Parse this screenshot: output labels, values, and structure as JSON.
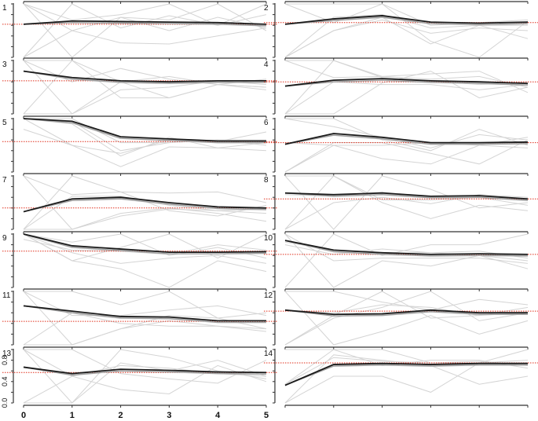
{
  "chart_data": {
    "type": "line",
    "layout": {
      "rows": 7,
      "cols": 2,
      "shared_x": true,
      "grid": false
    },
    "x": [
      0,
      1,
      2,
      3,
      4,
      5
    ],
    "x_tick_labels": [
      "0",
      "1",
      "2",
      "3",
      "4",
      "5"
    ],
    "y_tick_labels": [
      "0.0",
      "0.4",
      "0.8"
    ],
    "ylim": [
      0,
      1
    ],
    "xlim": [
      0,
      5
    ],
    "colors": {
      "mean": "#1a1a1a",
      "smooth": "#a0a0a0",
      "individual": "#d4d4d4",
      "reference": "#e0301e",
      "axis": "#333333"
    },
    "panels": [
      {
        "label": "1",
        "reference": 0.62,
        "mean": [
          0.62,
          0.68,
          0.67,
          0.66,
          0.65,
          0.62
        ],
        "series": [
          [
            1.0,
            0.0,
            0.75,
            0.5,
            0.75,
            0.55
          ],
          [
            0.0,
            1.0,
            0.55,
            0.78,
            0.6,
            0.8
          ],
          [
            0.0,
            0.5,
            0.27,
            0.25,
            0.4,
            0.55
          ],
          [
            1.0,
            0.5,
            0.75,
            0.7,
            1.0,
            0.5
          ],
          [
            1.0,
            0.7,
            0.8,
            1.0,
            0.6,
            1.0
          ]
        ]
      },
      {
        "label": "2",
        "reference": 0.65,
        "mean": [
          0.62,
          0.72,
          0.78,
          0.66,
          0.64,
          0.66
        ],
        "series": [
          [
            0.0,
            0.5,
            0.7,
            0.45,
            0.55,
            0.5
          ],
          [
            1.0,
            1.0,
            1.0,
            0.3,
            0.0,
            0.68
          ],
          [
            0.0,
            0.75,
            0.8,
            0.55,
            0.6,
            0.35
          ],
          [
            1.0,
            0.65,
            1.0,
            0.6,
            0.65,
            0.7
          ],
          [
            0.0,
            0.5,
            0.75,
            0.25,
            0.6,
            0.6
          ]
        ]
      },
      {
        "label": "3",
        "reference": 0.62,
        "mean": [
          0.8,
          0.68,
          0.62,
          0.6,
          0.62,
          0.62
        ],
        "series": [
          [
            1.0,
            0.0,
            0.6,
            0.3,
            0.55,
            0.45
          ],
          [
            0.0,
            1.0,
            0.3,
            0.3,
            0.55,
            0.5
          ],
          [
            1.0,
            0.6,
            0.85,
            0.65,
            0.55,
            0.5
          ],
          [
            0.0,
            0.0,
            0.45,
            0.5,
            0.62,
            0.55
          ],
          [
            1.0,
            1.0,
            0.6,
            0.7,
            0.55,
            0.65
          ]
        ]
      },
      {
        "label": "4",
        "reference": 0.6,
        "mean": [
          0.52,
          0.63,
          0.66,
          0.62,
          0.6,
          0.57
        ],
        "series": [
          [
            0.0,
            0.0,
            0.58,
            0.8,
            0.3,
            0.5
          ],
          [
            1.0,
            1.0,
            0.7,
            0.75,
            0.8,
            0.4
          ],
          [
            0.0,
            0.6,
            0.55,
            0.55,
            0.45,
            0.55
          ],
          [
            1.0,
            0.68,
            0.7,
            0.65,
            0.7,
            0.5
          ],
          [
            0.0,
            1.0,
            0.68,
            0.62,
            0.55,
            0.6
          ]
        ]
      },
      {
        "label": "5",
        "reference": 0.57,
        "mean": [
          1.0,
          0.95,
          0.66,
          0.62,
          0.58,
          0.58
        ],
        "series": [
          [
            1.0,
            0.5,
            0.1,
            0.47,
            0.45,
            0.4
          ],
          [
            1.0,
            0.9,
            0.3,
            0.65,
            0.45,
            0.55
          ],
          [
            0.8,
            0.5,
            0.35,
            0.6,
            0.57,
            0.75
          ],
          [
            1.0,
            0.95,
            0.4,
            0.55,
            0.6,
            0.5
          ],
          [
            1.0,
            1.0,
            0.55,
            0.55,
            0.6,
            0.6
          ]
        ]
      },
      {
        "label": "6",
        "reference": 0.55,
        "mean": [
          0.52,
          0.72,
          0.65,
          0.55,
          0.55,
          0.56
        ],
        "series": [
          [
            0.0,
            0.5,
            0.25,
            0.15,
            0.5,
            0.65
          ],
          [
            1.0,
            1.0,
            0.6,
            0.4,
            0.8,
            0.5
          ],
          [
            0.0,
            0.55,
            0.55,
            0.35,
            0.15,
            0.6
          ],
          [
            1.0,
            0.85,
            0.65,
            0.45,
            0.7,
            0.6
          ],
          [
            0.55,
            0.5,
            0.5,
            0.55,
            0.5,
            0.45
          ]
        ]
      },
      {
        "label": "7",
        "reference": 0.4,
        "mean": [
          0.33,
          0.57,
          0.6,
          0.5,
          0.42,
          0.4
        ],
        "series": [
          [
            1.0,
            0.0,
            0.3,
            0.4,
            0.3,
            0.15
          ],
          [
            0.0,
            1.0,
            0.7,
            0.35,
            0.25,
            0.45
          ],
          [
            1.0,
            0.65,
            0.7,
            0.68,
            0.7,
            0.5
          ],
          [
            0.0,
            0.0,
            0.25,
            0.38,
            0.35,
            0.3
          ],
          [
            0.0,
            0.62,
            0.62,
            0.45,
            0.35,
            0.38
          ]
        ]
      },
      {
        "label": "8",
        "reference": 0.57,
        "mean": [
          0.68,
          0.65,
          0.68,
          0.62,
          0.63,
          0.57
        ],
        "series": [
          [
            0.0,
            1.0,
            0.5,
            0.2,
            0.45,
            0.35
          ],
          [
            1.0,
            0.0,
            1.0,
            0.75,
            0.4,
            0.5
          ],
          [
            0.0,
            0.5,
            0.6,
            0.48,
            0.65,
            0.6
          ],
          [
            1.0,
            1.0,
            0.55,
            0.55,
            0.6,
            0.45
          ],
          [
            0.65,
            0.62,
            0.7,
            0.6,
            0.62,
            0.55
          ]
        ]
      },
      {
        "label": "9",
        "reference": 0.68,
        "mean": [
          1.0,
          0.78,
          0.72,
          0.66,
          0.66,
          0.67
        ],
        "series": [
          [
            1.0,
            0.5,
            0.35,
            0.0,
            0.5,
            0.3
          ],
          [
            1.0,
            0.5,
            0.75,
            1.0,
            0.55,
            1.0
          ],
          [
            1.0,
            0.65,
            0.45,
            0.55,
            0.6,
            0.45
          ],
          [
            1.0,
            0.85,
            1.0,
            0.6,
            0.75,
            0.55
          ],
          [
            0.9,
            0.7,
            0.68,
            0.62,
            0.8,
            0.7
          ]
        ]
      },
      {
        "label": "10",
        "reference": 0.62,
        "mean": [
          0.88,
          0.7,
          0.65,
          0.62,
          0.63,
          0.62
        ],
        "series": [
          [
            1.0,
            0.0,
            0.5,
            0.4,
            0.6,
            0.35
          ],
          [
            0.0,
            1.0,
            0.6,
            0.8,
            0.8,
            1.0
          ],
          [
            1.0,
            0.5,
            0.55,
            0.55,
            0.55,
            0.45
          ],
          [
            0.8,
            0.62,
            0.72,
            0.65,
            0.6,
            0.5
          ],
          [
            0.85,
            0.7,
            0.65,
            0.65,
            0.68,
            0.55
          ]
        ]
      },
      {
        "label": "11",
        "reference": 0.44,
        "mean": [
          0.73,
          0.63,
          0.53,
          0.52,
          0.45,
          0.45
        ],
        "series": [
          [
            0.0,
            0.0,
            0.3,
            0.45,
            0.35,
            0.25
          ],
          [
            1.0,
            0.0,
            0.3,
            0.55,
            0.5,
            0.6
          ],
          [
            1.0,
            1.0,
            0.75,
            1.0,
            0.5,
            0.3
          ],
          [
            0.0,
            0.6,
            0.4,
            0.35,
            0.35,
            0.3
          ],
          [
            1.0,
            0.55,
            0.55,
            0.65,
            0.73,
            0.55
          ]
        ]
      },
      {
        "label": "12",
        "reference": 0.63,
        "mean": [
          0.65,
          0.57,
          0.58,
          0.65,
          0.6,
          0.6
        ],
        "series": [
          [
            0.0,
            0.5,
            0.7,
            1.0,
            0.45,
            0.6
          ],
          [
            1.0,
            0.0,
            0.25,
            0.55,
            0.2,
            0.45
          ],
          [
            1.0,
            1.0,
            0.8,
            0.65,
            0.85,
            0.75
          ],
          [
            0.0,
            0.55,
            1.0,
            0.5,
            0.55,
            0.6
          ],
          [
            0.65,
            0.6,
            0.75,
            0.7,
            0.55,
            0.7
          ]
        ]
      },
      {
        "label": "13",
        "reference": 0.57,
        "mean": [
          0.67,
          0.55,
          0.63,
          0.61,
          0.58,
          0.57
        ],
        "series": [
          [
            1.0,
            0.0,
            1.0,
            0.85,
            0.6,
            0.45
          ],
          [
            0.0,
            0.5,
            0.25,
            0.17,
            0.7,
            0.4
          ],
          [
            1.0,
            1.0,
            0.55,
            0.45,
            0.37,
            0.8
          ],
          [
            0.0,
            0.0,
            0.75,
            0.6,
            0.8,
            0.5
          ],
          [
            1.0,
            0.5,
            0.7,
            0.65,
            0.55,
            0.5
          ]
        ]
      },
      {
        "label": "14",
        "reference": 0.75,
        "mean": [
          0.33,
          0.72,
          0.74,
          0.72,
          0.74,
          0.74
        ],
        "series": [
          [
            0.0,
            0.5,
            0.5,
            0.2,
            0.75,
            0.8
          ],
          [
            0.35,
            1.0,
            0.7,
            0.8,
            0.8,
            0.65
          ],
          [
            0.0,
            0.9,
            0.8,
            0.7,
            0.35,
            0.5
          ],
          [
            0.35,
            0.85,
            0.78,
            0.75,
            0.78,
            0.7
          ],
          [
            1.0,
            1.0,
            1.0,
            0.75,
            0.75,
            1.0
          ]
        ]
      }
    ]
  }
}
